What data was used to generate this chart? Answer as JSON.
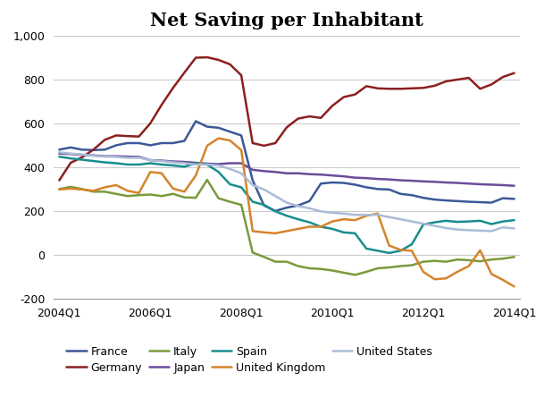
{
  "title": "Net Saving per Inhabitant",
  "ylim": [
    -200,
    1000
  ],
  "yticks": [
    -200,
    0,
    200,
    400,
    600,
    800,
    1000
  ],
  "ytick_labels": [
    "-200",
    "0",
    "200",
    "400",
    "600",
    "800",
    "1,000"
  ],
  "xtick_labels": [
    "2004Q1",
    "2006Q1",
    "2008Q1",
    "2010Q1",
    "2012Q1",
    "2014Q1"
  ],
  "xtick_positions": [
    0,
    8,
    16,
    24,
    32,
    40
  ],
  "n_points": 41,
  "series": {
    "France": {
      "color": "#3B5998",
      "data": [
        480,
        490,
        480,
        478,
        480,
        500,
        510,
        510,
        500,
        510,
        510,
        520,
        610,
        585,
        580,
        562,
        545,
        340,
        225,
        200,
        215,
        225,
        245,
        325,
        330,
        328,
        320,
        308,
        300,
        298,
        278,
        272,
        260,
        252,
        248,
        245,
        242,
        240,
        238,
        258,
        255
      ]
    },
    "Germany": {
      "color": "#8B2020",
      "data": [
        340,
        420,
        445,
        480,
        525,
        545,
        542,
        540,
        600,
        685,
        762,
        832,
        900,
        902,
        890,
        870,
        820,
        510,
        498,
        510,
        582,
        622,
        632,
        625,
        680,
        720,
        732,
        770,
        760,
        758,
        758,
        760,
        762,
        772,
        792,
        800,
        808,
        758,
        778,
        812,
        830
      ]
    },
    "Italy": {
      "color": "#7A9A3C",
      "data": [
        300,
        310,
        300,
        288,
        288,
        278,
        268,
        272,
        275,
        268,
        278,
        262,
        260,
        342,
        258,
        242,
        228,
        10,
        -10,
        -32,
        -32,
        -52,
        -62,
        -65,
        -72,
        -82,
        -92,
        -78,
        -62,
        -58,
        -52,
        -48,
        -32,
        -28,
        -32,
        -22,
        -25,
        -30,
        -22,
        -18,
        -10
      ]
    },
    "Japan": {
      "color": "#6B4C9A",
      "data": [
        462,
        460,
        456,
        454,
        450,
        450,
        448,
        447,
        432,
        430,
        426,
        424,
        420,
        416,
        414,
        418,
        418,
        388,
        382,
        378,
        372,
        372,
        368,
        366,
        362,
        358,
        352,
        350,
        346,
        344,
        340,
        338,
        335,
        333,
        330,
        328,
        325,
        322,
        320,
        318,
        315
      ]
    },
    "Spain": {
      "color": "#1A8C8C",
      "data": [
        448,
        440,
        434,
        428,
        422,
        418,
        412,
        412,
        418,
        412,
        408,
        402,
        418,
        412,
        378,
        322,
        308,
        242,
        228,
        198,
        178,
        162,
        148,
        128,
        118,
        102,
        98,
        28,
        18,
        8,
        18,
        48,
        138,
        148,
        155,
        150,
        152,
        155,
        140,
        152,
        158
      ]
    },
    "United Kingdom": {
      "color": "#D4842C",
      "data": [
        298,
        302,
        298,
        292,
        308,
        318,
        292,
        282,
        378,
        372,
        302,
        288,
        362,
        498,
        532,
        522,
        478,
        108,
        102,
        98,
        108,
        118,
        128,
        128,
        152,
        162,
        158,
        178,
        188,
        42,
        22,
        18,
        -78,
        -112,
        -108,
        -78,
        -52,
        20,
        -88,
        -115,
        -145
      ]
    },
    "United States": {
      "color": "#AABCD8",
      "data": [
        468,
        462,
        458,
        452,
        448,
        447,
        443,
        443,
        432,
        428,
        422,
        418,
        412,
        412,
        408,
        392,
        372,
        318,
        298,
        268,
        238,
        222,
        212,
        198,
        192,
        188,
        182,
        182,
        182,
        172,
        162,
        152,
        142,
        132,
        122,
        115,
        112,
        110,
        108,
        125,
        120
      ]
    }
  },
  "legend_order": [
    "France",
    "Germany",
    "Italy",
    "Japan",
    "Spain",
    "United Kingdom",
    "United States"
  ],
  "background_color": "#FFFFFF"
}
